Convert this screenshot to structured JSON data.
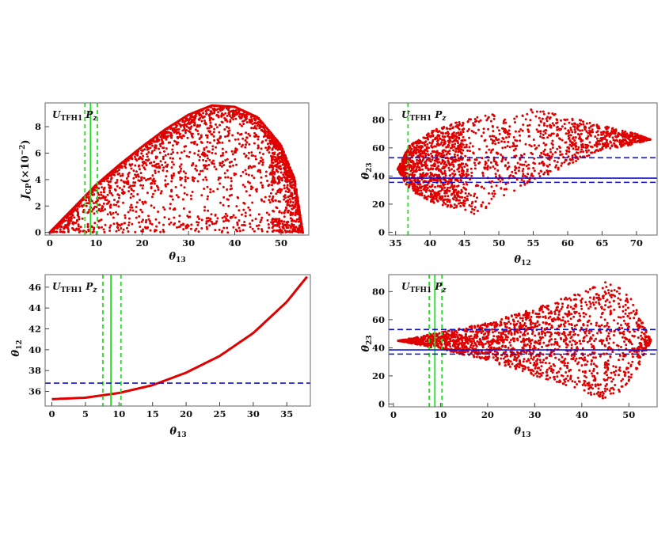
{
  "figure": {
    "panels": [
      {
        "id": "tl",
        "label_main": "U",
        "label_sub": "TFH1",
        "label_P": "P",
        "label_P_sub": "z",
        "xlabel_main": "θ",
        "xlabel_sub": "13",
        "ylabel_main": "J",
        "ylabel_sub": "CP",
        "ylabel_tail": "(×10",
        "ylabel_sup": "−2",
        "ylabel_end": ")"
      },
      {
        "id": "tr",
        "label_main": "U",
        "label_sub": "TFH1",
        "label_P": "P",
        "label_P_sub": "z",
        "xlabel_main": "θ",
        "xlabel_sub": "12",
        "ylabel_main": "θ",
        "ylabel_sub": "23"
      },
      {
        "id": "bl",
        "label_main": "U",
        "label_sub": "TFH1",
        "label_P": "P",
        "label_P_sub": "z",
        "xlabel_main": "θ",
        "xlabel_sub": "13",
        "ylabel_main": "θ",
        "ylabel_sub": "12"
      },
      {
        "id": "br",
        "label_main": "U",
        "label_sub": "TFH1",
        "label_P": "P",
        "label_P_sub": "z",
        "xlabel_main": "θ",
        "xlabel_sub": "13",
        "ylabel_main": "θ",
        "ylabel_sub": "23"
      }
    ]
  },
  "colors": {
    "points": "#e00000",
    "green_solid": "#22dd22",
    "green_dashed": "#22dd22",
    "blue_solid": "#1010cc",
    "blue_dashed": "#1010cc",
    "frame": "#666666"
  },
  "chart_data": [
    {
      "id": "tl",
      "type": "scatter",
      "xlim": [
        -1,
        56
      ],
      "ylim": [
        -0.2,
        9.8
      ],
      "xticks": [
        0,
        10,
        20,
        30,
        40,
        50
      ],
      "yticks": [
        0,
        2,
        4,
        6,
        8
      ],
      "region": "theta13 in [0, 54.7]; Jcp in [0, upper(θ13)] with upper rising from 0 at θ13=0 to ~9.6 at θ13≈35 and back to 0 at θ13≈54.7",
      "envelope_upper": [
        [
          0,
          0
        ],
        [
          5,
          1.8
        ],
        [
          10,
          3.6
        ],
        [
          15,
          5.1
        ],
        [
          20,
          6.5
        ],
        [
          25,
          7.8
        ],
        [
          30,
          8.9
        ],
        [
          35,
          9.6
        ],
        [
          40,
          9.5
        ],
        [
          45,
          8.7
        ],
        [
          50,
          6.6
        ],
        [
          53,
          4.0
        ],
        [
          54.7,
          0
        ]
      ],
      "vlines_solid": [
        8.8
      ],
      "vlines_dashed": [
        7.6,
        10.3
      ],
      "hlines_solid": [],
      "hlines_dashed": []
    },
    {
      "id": "tr",
      "type": "scatter",
      "xlim": [
        34,
        73
      ],
      "ylim": [
        -2,
        92
      ],
      "xticks": [
        35,
        40,
        45,
        50,
        55,
        60,
        65,
        70
      ],
      "yticks": [
        0,
        20,
        40,
        60,
        80
      ],
      "region": "θ12 from 35.3 to ~72; θ23 spread between lower and upper envelopes opening from 45 at θ12=35.3",
      "envelope_upper": [
        [
          35.3,
          45
        ],
        [
          37,
          62
        ],
        [
          40,
          72
        ],
        [
          45,
          80
        ],
        [
          50,
          85
        ],
        [
          55,
          88
        ],
        [
          60,
          82
        ],
        [
          65,
          76
        ],
        [
          70,
          70
        ],
        [
          72,
          66
        ]
      ],
      "envelope_lower": [
        [
          35.3,
          45
        ],
        [
          37,
          30
        ],
        [
          40,
          22
        ],
        [
          43,
          17
        ],
        [
          46.5,
          13
        ],
        [
          50,
          22
        ],
        [
          55,
          35
        ],
        [
          60,
          48
        ],
        [
          65,
          58
        ],
        [
          70,
          63
        ],
        [
          72,
          66
        ]
      ],
      "vlines_solid": [],
      "vlines_dashed": [
        36.8
      ],
      "hlines_solid": [
        38.5
      ],
      "hlines_dashed": [
        35.5,
        53
      ]
    },
    {
      "id": "bl",
      "type": "line",
      "xlim": [
        -1,
        38.5
      ],
      "ylim": [
        34.6,
        47.2
      ],
      "xticks": [
        0,
        5,
        10,
        15,
        20,
        25,
        30,
        35
      ],
      "yticks": [
        36,
        38,
        40,
        42,
        44,
        46
      ],
      "curve": [
        [
          0,
          35.26
        ],
        [
          5,
          35.4
        ],
        [
          10,
          35.85
        ],
        [
          15,
          36.6
        ],
        [
          20,
          37.8
        ],
        [
          25,
          39.4
        ],
        [
          30,
          41.6
        ],
        [
          35,
          44.6
        ],
        [
          38,
          47.0
        ]
      ],
      "vlines_solid": [
        8.8
      ],
      "vlines_dashed": [
        7.6,
        10.3
      ],
      "hlines_solid": [],
      "hlines_dashed": [
        36.8
      ]
    },
    {
      "id": "br",
      "type": "scatter",
      "xlim": [
        -1,
        56
      ],
      "ylim": [
        -2,
        92
      ],
      "xticks": [
        0,
        10,
        20,
        30,
        40,
        50
      ],
      "yticks": [
        0,
        20,
        40,
        60,
        80
      ],
      "region": "θ13 from ~1 to 54.7; θ23 spread in a wedge opening from 45 at small θ13 to 3–88 near θ13≈45",
      "envelope_upper": [
        [
          1,
          45
        ],
        [
          10,
          51
        ],
        [
          20,
          58
        ],
        [
          30,
          68
        ],
        [
          40,
          80
        ],
        [
          45,
          88
        ],
        [
          50,
          80
        ],
        [
          54.7,
          45
        ]
      ],
      "envelope_lower": [
        [
          1,
          45
        ],
        [
          10,
          39
        ],
        [
          20,
          31
        ],
        [
          30,
          20
        ],
        [
          40,
          9
        ],
        [
          45,
          3
        ],
        [
          50,
          12
        ],
        [
          54.7,
          45
        ]
      ],
      "vlines_solid": [
        8.8
      ],
      "vlines_dashed": [
        7.6,
        10.3
      ],
      "hlines_solid": [
        38.5
      ],
      "hlines_dashed": [
        35.5,
        53
      ]
    }
  ]
}
